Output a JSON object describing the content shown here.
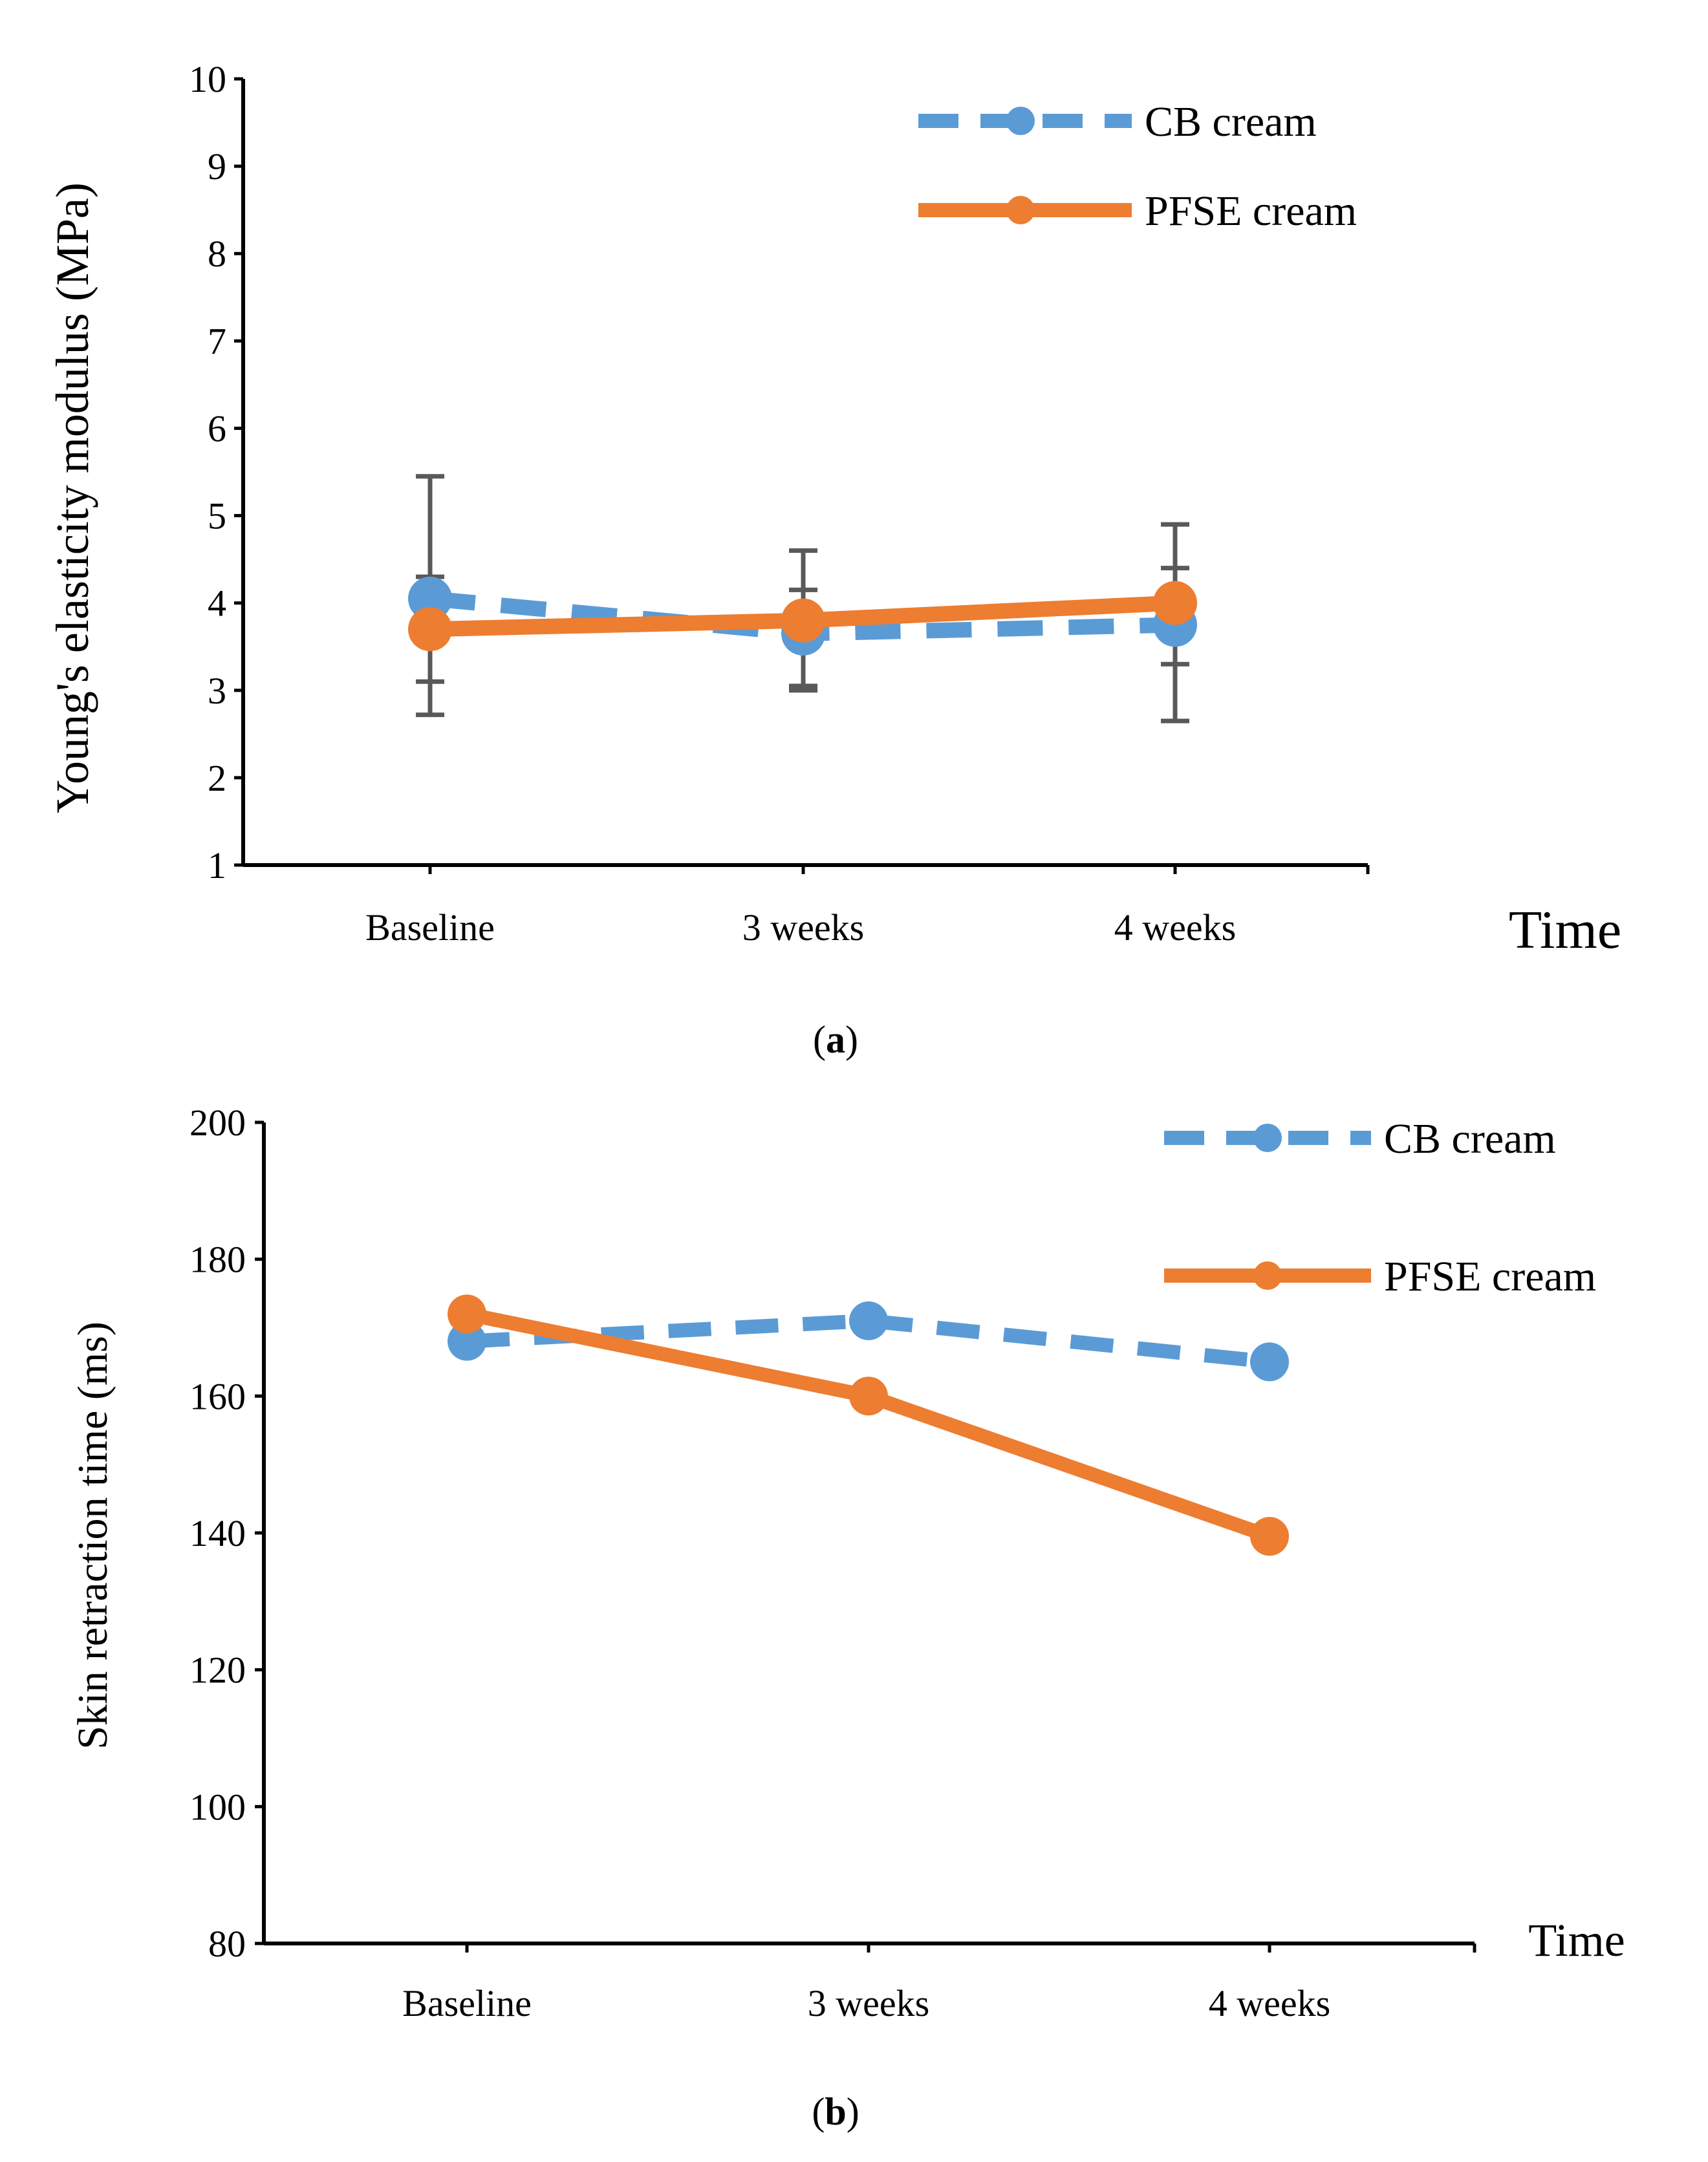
{
  "colors": {
    "cb": "#5B9BD5",
    "pfse": "#ED7D31",
    "axis": "#000000",
    "errorbar": "#595959"
  },
  "chart_data": [
    {
      "type": "line",
      "panel": "a",
      "caption": {
        "open": "(",
        "letter": "a",
        "close": ")"
      },
      "categories": [
        "Baseline",
        "3 weeks",
        "4 weeks"
      ],
      "xlabel": "Time",
      "ylabel": "Young's elasticity modulus (MPa)",
      "ylim": [
        1,
        10
      ],
      "yticks": [
        1,
        2,
        3,
        4,
        5,
        6,
        7,
        8,
        9,
        10
      ],
      "grid": false,
      "legend": "top-right",
      "series": [
        {
          "name": "CB cream",
          "style": "dashed",
          "values": [
            4.05,
            3.65,
            3.75
          ],
          "error_low": [
            3.1,
            3.0,
            3.3
          ],
          "error_high": [
            4.3,
            4.15,
            4.4
          ]
        },
        {
          "name": "PFSE cream",
          "style": "solid",
          "values": [
            3.7,
            3.8,
            4.0
          ],
          "error_low": [
            2.72,
            3.05,
            2.65
          ],
          "error_high": [
            5.45,
            4.6,
            4.9
          ]
        }
      ]
    },
    {
      "type": "line",
      "panel": "b",
      "caption": {
        "open": "(",
        "letter": "b",
        "close": ")"
      },
      "categories": [
        "Baseline",
        "3 weeks",
        "4 weeks"
      ],
      "xlabel": "Time",
      "ylabel": "Skin retraction time (ms)",
      "ylim": [
        80,
        200
      ],
      "yticks": [
        80,
        100,
        120,
        140,
        160,
        180,
        200
      ],
      "grid": false,
      "legend": "top-right",
      "series": [
        {
          "name": "CB cream",
          "style": "dashed",
          "values": [
            168,
            171,
            165
          ]
        },
        {
          "name": "PFSE cream",
          "style": "solid",
          "values": [
            172,
            160,
            139.5
          ]
        }
      ]
    }
  ]
}
